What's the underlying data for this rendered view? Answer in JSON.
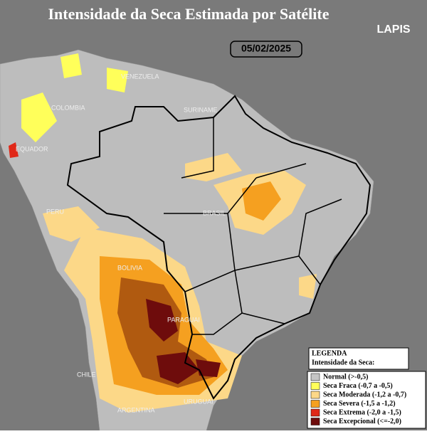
{
  "header": {
    "title": "Intensidade da Seca Estimada por Satélite",
    "date": "05/02/2025",
    "logo": "LAPIS"
  },
  "map": {
    "labels": [
      "VENEZUELA",
      "COLOMBIA",
      "SURINAME",
      "EQUADOR",
      "PERU",
      "BRASIL",
      "BOLIVIA",
      "PARAGUAI",
      "CHILE",
      "URUGUAI",
      "ARGENTINA"
    ]
  },
  "legend": {
    "title": "LEGENDA",
    "subtitle": "Intensidade da Seca:",
    "items": [
      {
        "label": "Normal (>-0,5)",
        "color": "#c4c4c4"
      },
      {
        "label": "Seca Fraca (-0,7 a -0,5)",
        "color": "#ffff5a"
      },
      {
        "label": "Seca Moderada (-1,2 a -0,7)",
        "color": "#fcd888"
      },
      {
        "label": "Seca Severa (-1,5 a -1,2)",
        "color": "#f5a020"
      },
      {
        "label": "Seca Extrema (-2,0 a -1,5)",
        "color": "#e02818"
      },
      {
        "label": "Seca Excepcional (<=-2,0)",
        "color": "#6e0c0c"
      }
    ]
  }
}
